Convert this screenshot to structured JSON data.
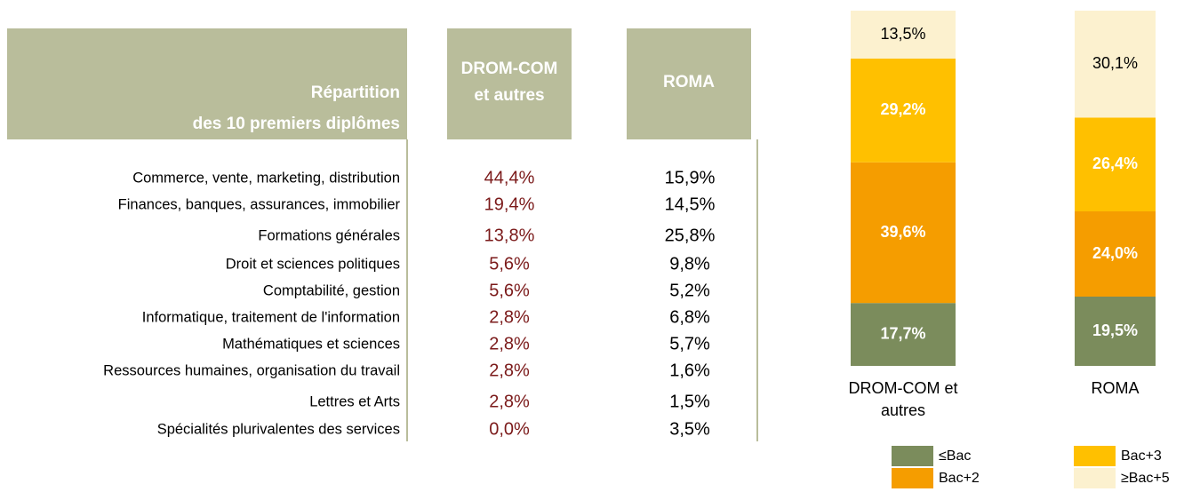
{
  "table": {
    "title": [
      "Répartition",
      "des 10 premiers diplômes"
    ],
    "columns": [
      [
        "DROM-COM",
        "et autres"
      ],
      [
        "ROMA"
      ]
    ],
    "rows": [
      {
        "label": "Commerce, vente, marketing, distribution",
        "values": [
          "44,4%",
          "15,9%"
        ]
      },
      {
        "label": "Finances, banques, assurances, immobilier",
        "values": [
          "19,4%",
          "14,5%"
        ]
      },
      {
        "label": "Formations générales",
        "values": [
          "13,8%",
          "25,8%"
        ]
      },
      {
        "label": "Droit et sciences politiques",
        "values": [
          "5,6%",
          "9,8%"
        ]
      },
      {
        "label": "Comptabilité, gestion",
        "values": [
          "5,6%",
          "5,2%"
        ]
      },
      {
        "label": "Informatique, traitement de l'information",
        "values": [
          "2,8%",
          "6,8%"
        ]
      },
      {
        "label": "Mathématiques et sciences",
        "values": [
          "2,8%",
          "5,7%"
        ]
      },
      {
        "label": "Ressources humaines, organisation du travail",
        "values": [
          "2,8%",
          "1,6%"
        ]
      },
      {
        "label": "Lettres et Arts",
        "values": [
          "2,8%",
          "1,5%"
        ]
      },
      {
        "label": "Spécialités plurivalentes des services",
        "values": [
          "0,0%",
          "3,5%"
        ]
      }
    ]
  },
  "chart_data": {
    "type": "stacked_bar",
    "categories": [
      "DROM-COM et autres",
      "ROMA"
    ],
    "ylim": [
      0,
      100
    ],
    "series": [
      {
        "name": "≤Bac",
        "color": "#7b8c5c",
        "values": [
          17.7,
          19.5
        ],
        "value_labels": [
          "17,7%",
          "19,5%"
        ]
      },
      {
        "name": "Bac+2",
        "color": "#f59d00",
        "values": [
          39.6,
          24.0
        ],
        "value_labels": [
          "39,6%",
          "24,0%"
        ]
      },
      {
        "name": "Bac+3",
        "color": "#ffc000",
        "values": [
          29.2,
          26.4
        ],
        "value_labels": [
          "29,2%",
          "26,4%"
        ]
      },
      {
        "name": "≥Bac+5",
        "color": "#fcf1cf",
        "values": [
          13.5,
          30.1
        ],
        "value_labels": [
          "13,5%",
          "30,1%"
        ]
      }
    ]
  }
}
